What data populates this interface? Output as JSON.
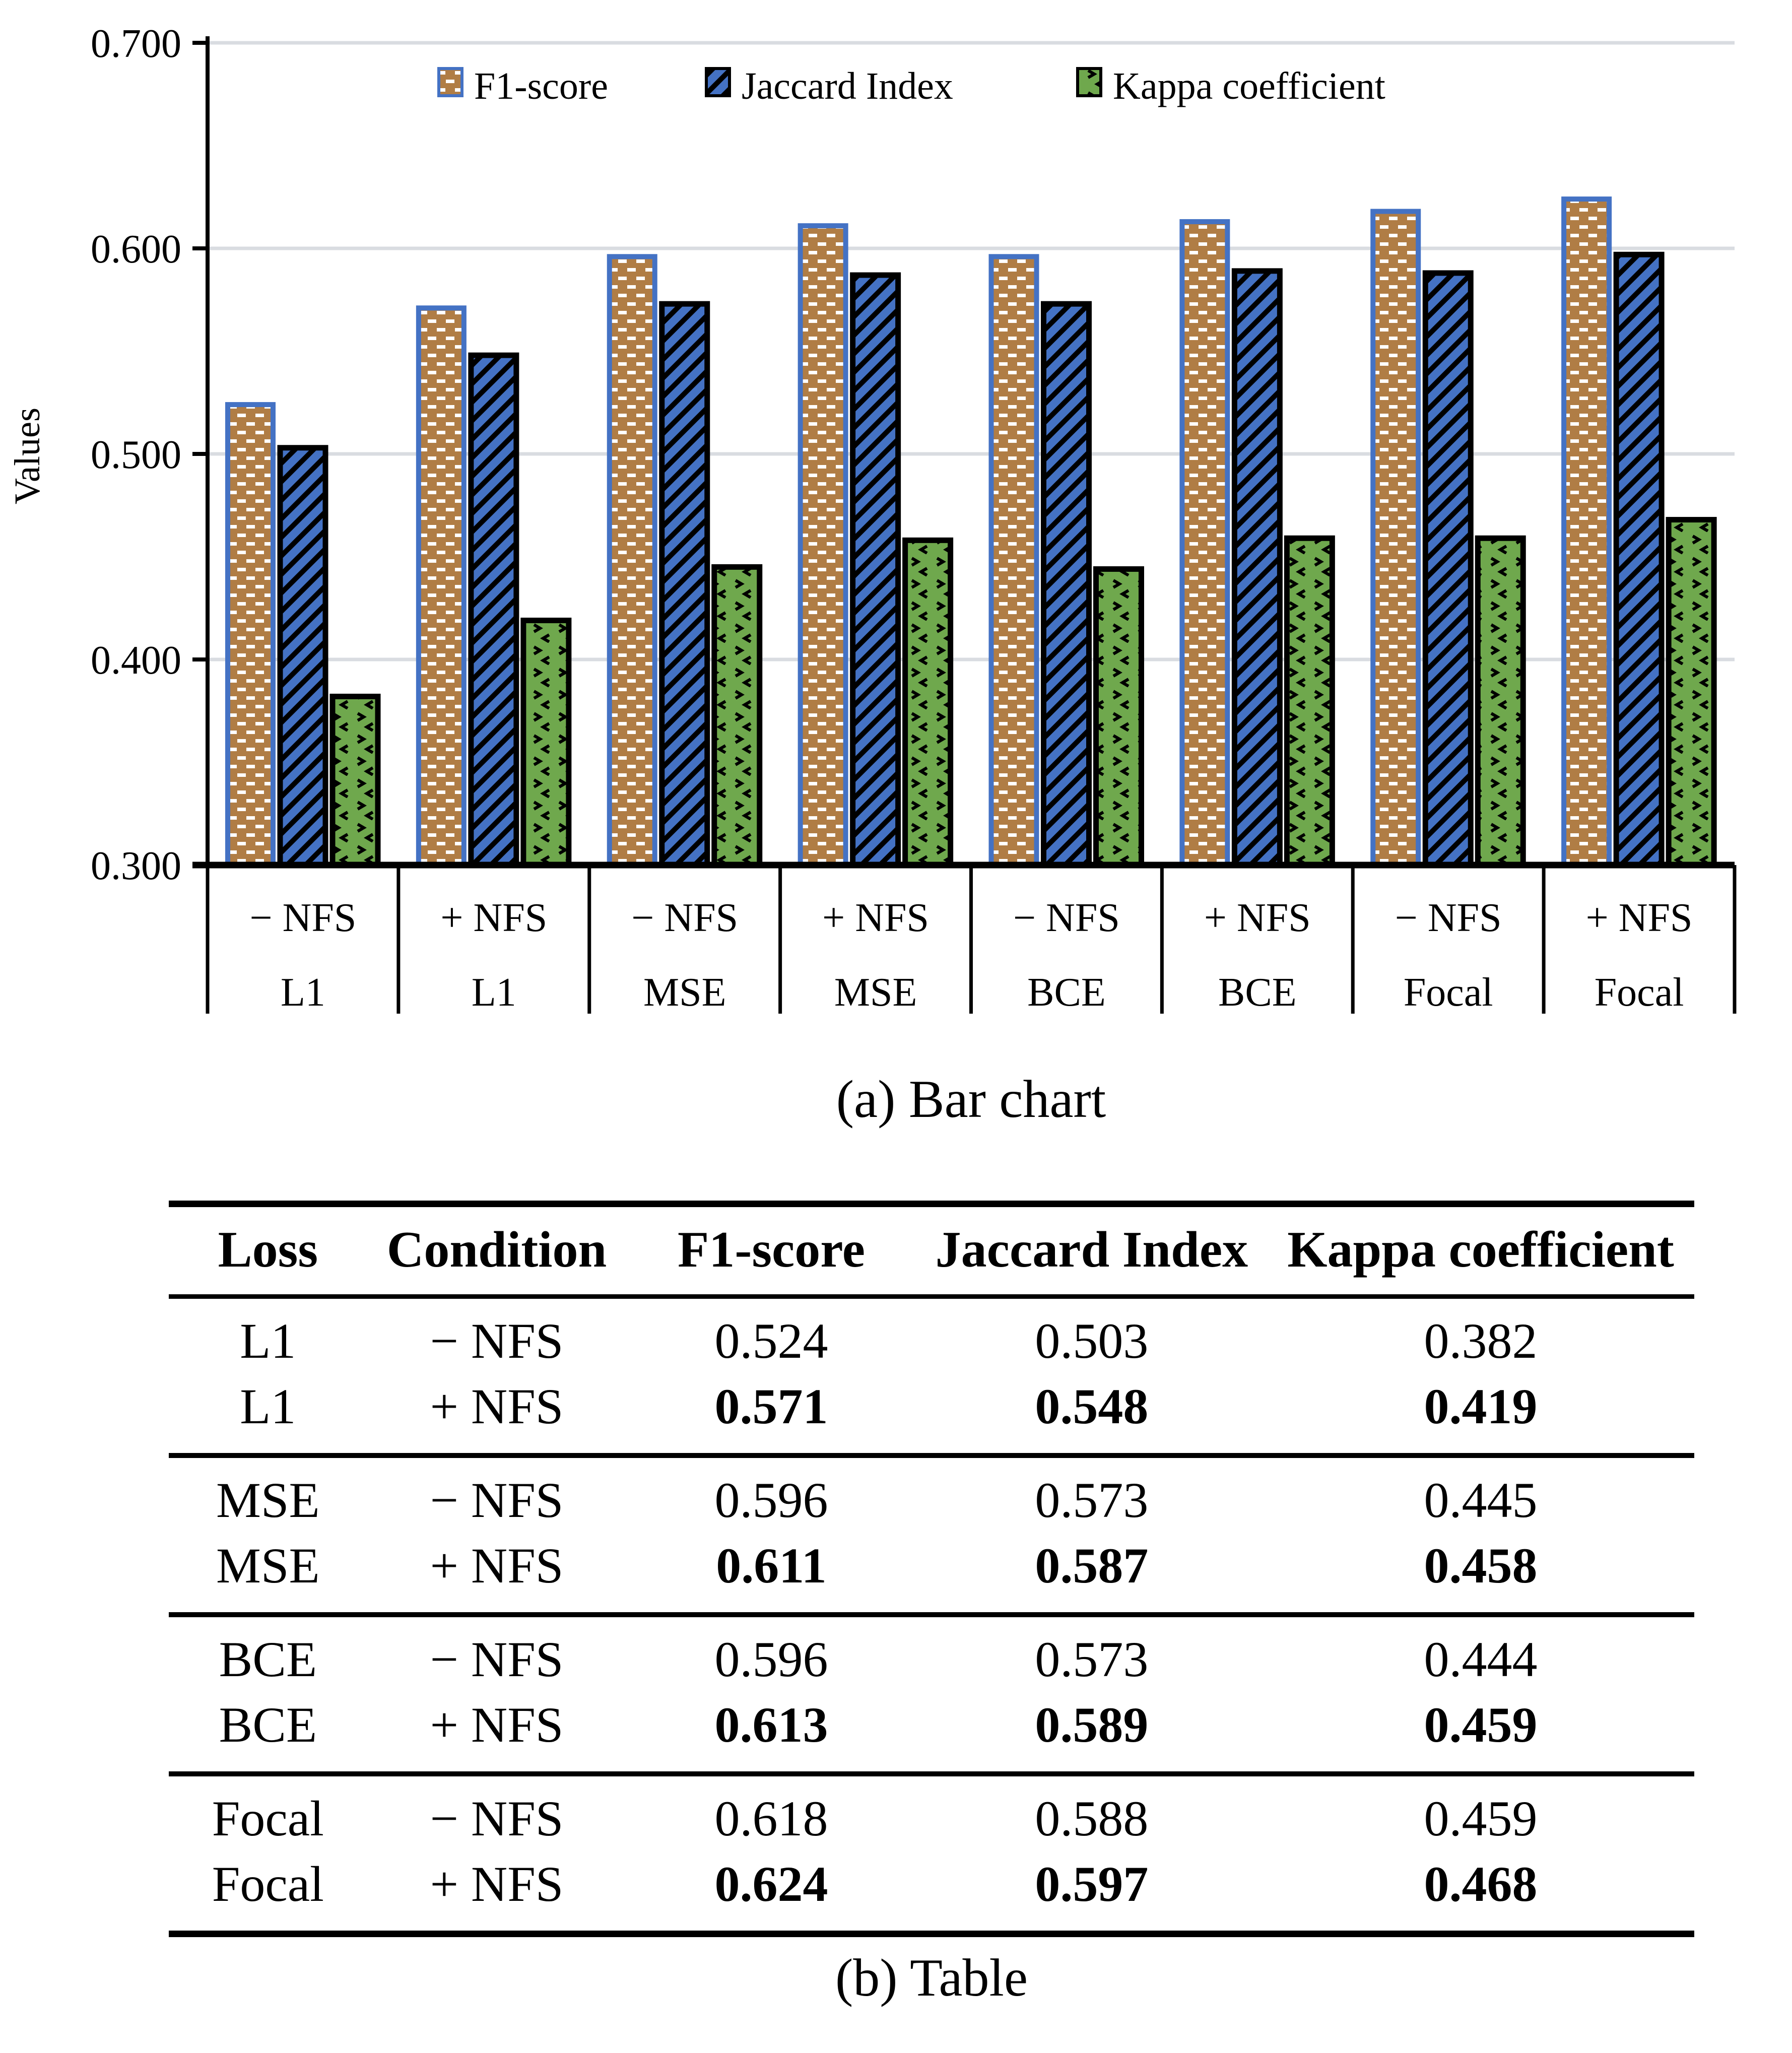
{
  "figure": {
    "caption_a": "(a) Bar chart",
    "caption_b": "(b) Table"
  },
  "chart_data": {
    "type": "bar",
    "title": "",
    "xlabel": "",
    "ylabel": "Values",
    "ylim": [
      0.3,
      0.7
    ],
    "yticks": [
      "0.300",
      "0.400",
      "0.500",
      "0.600",
      "0.700"
    ],
    "grid": true,
    "legend_position": "top",
    "categories": [
      {
        "condition": "− NFS",
        "loss": "L1"
      },
      {
        "condition": "+ NFS",
        "loss": "L1"
      },
      {
        "condition": "− NFS",
        "loss": "MSE"
      },
      {
        "condition": "+ NFS",
        "loss": "MSE"
      },
      {
        "condition": "− NFS",
        "loss": "BCE"
      },
      {
        "condition": "+ NFS",
        "loss": "BCE"
      },
      {
        "condition": "− NFS",
        "loss": "Focal"
      },
      {
        "condition": "+ NFS",
        "loss": "Focal"
      }
    ],
    "series": [
      {
        "name": "F1-score",
        "pattern": "brick",
        "fill": "#B07D45",
        "pattern_color": "#FFFFFF",
        "border": "#4472C4",
        "values": [
          0.524,
          0.571,
          0.596,
          0.611,
          0.596,
          0.613,
          0.618,
          0.624
        ]
      },
      {
        "name": "Jaccard Index",
        "pattern": "diag",
        "fill": "#4472C4",
        "pattern_color": "#000000",
        "border": "#000000",
        "values": [
          0.503,
          0.548,
          0.573,
          0.587,
          0.573,
          0.589,
          0.588,
          0.597
        ]
      },
      {
        "name": "Kappa coefficient",
        "pattern": "divot",
        "fill": "#6FA84D",
        "pattern_color": "#000000",
        "border": "#000000",
        "values": [
          0.382,
          0.419,
          0.445,
          0.458,
          0.444,
          0.459,
          0.459,
          0.468
        ]
      }
    ],
    "gridline_color": "#D9DCE1",
    "axis_color": "#000000"
  },
  "table": {
    "headers": [
      "Loss",
      "Condition",
      "F1-score",
      "Jaccard Index",
      "Kappa coefficient"
    ],
    "rows": [
      {
        "loss": "L1",
        "condition": "− NFS",
        "f1": "0.524",
        "jaccard": "0.503",
        "kappa": "0.382",
        "bold": false
      },
      {
        "loss": "L1",
        "condition": "+ NFS",
        "f1": "0.571",
        "jaccard": "0.548",
        "kappa": "0.419",
        "bold": true
      },
      {
        "loss": "MSE",
        "condition": "− NFS",
        "f1": "0.596",
        "jaccard": "0.573",
        "kappa": "0.445",
        "bold": false
      },
      {
        "loss": "MSE",
        "condition": "+ NFS",
        "f1": "0.611",
        "jaccard": "0.587",
        "kappa": "0.458",
        "bold": true
      },
      {
        "loss": "BCE",
        "condition": "− NFS",
        "f1": "0.596",
        "jaccard": "0.573",
        "kappa": "0.444",
        "bold": false
      },
      {
        "loss": "BCE",
        "condition": "+ NFS",
        "f1": "0.613",
        "jaccard": "0.589",
        "kappa": "0.459",
        "bold": true
      },
      {
        "loss": "Focal",
        "condition": "− NFS",
        "f1": "0.618",
        "jaccard": "0.588",
        "kappa": "0.459",
        "bold": false
      },
      {
        "loss": "Focal",
        "condition": "+ NFS",
        "f1": "0.624",
        "jaccard": "0.597",
        "kappa": "0.468",
        "bold": true
      }
    ]
  }
}
